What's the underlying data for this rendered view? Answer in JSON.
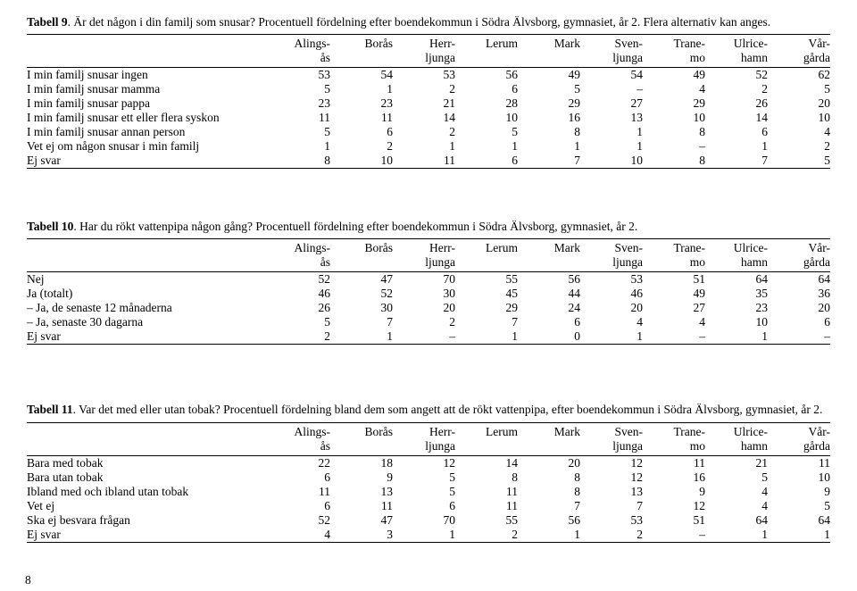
{
  "pageNumber": "8",
  "columns": {
    "top": [
      "Alings-",
      "Borås",
      "Herr-",
      "Lerum",
      "Mark",
      "Sven-",
      "Trane-",
      "Ulrice-",
      "Vår-"
    ],
    "bottom": [
      "ås",
      "",
      "ljunga",
      "",
      "",
      "ljunga",
      "mo",
      "hamn",
      "gårda"
    ]
  },
  "tables": [
    {
      "captionBold": "Tabell 9",
      "captionRest": ". Är det någon i din familj som snusar? Procentuell fördelning efter boendekommun i Södra Älvsborg, gymnasiet, år 2. Flera alternativ kan anges.",
      "rows": [
        {
          "label": "I min familj snusar ingen",
          "v": [
            "53",
            "54",
            "53",
            "56",
            "49",
            "54",
            "49",
            "52",
            "62"
          ]
        },
        {
          "label": "I min familj snusar mamma",
          "v": [
            "5",
            "1",
            "2",
            "6",
            "5",
            "–",
            "4",
            "2",
            "5"
          ]
        },
        {
          "label": "I min familj snusar pappa",
          "v": [
            "23",
            "23",
            "21",
            "28",
            "29",
            "27",
            "29",
            "26",
            "20"
          ]
        },
        {
          "label": "I min familj snusar ett eller flera syskon",
          "v": [
            "11",
            "11",
            "14",
            "10",
            "16",
            "13",
            "10",
            "14",
            "10"
          ]
        },
        {
          "label": "I min familj snusar annan person",
          "v": [
            "5",
            "6",
            "2",
            "5",
            "8",
            "1",
            "8",
            "6",
            "4"
          ]
        },
        {
          "label": "Vet ej om någon snusar i min familj",
          "v": [
            "1",
            "2",
            "1",
            "1",
            "1",
            "1",
            "–",
            "1",
            "2"
          ]
        },
        {
          "label": "Ej svar",
          "v": [
            "8",
            "10",
            "11",
            "6",
            "7",
            "10",
            "8",
            "7",
            "5"
          ]
        }
      ]
    },
    {
      "captionBold": "Tabell 10",
      "captionRest": ". Har du rökt vattenpipa någon gång? Procentuell fördelning efter boendekommun i Södra Älvsborg, gymnasiet, år 2.",
      "rows": [
        {
          "label": "Nej",
          "v": [
            "52",
            "47",
            "70",
            "55",
            "56",
            "53",
            "51",
            "64",
            "64"
          ]
        },
        {
          "label": "Ja (totalt)",
          "v": [
            "46",
            "52",
            "30",
            "45",
            "44",
            "46",
            "49",
            "35",
            "36"
          ]
        },
        {
          "label": "– Ja, de senaste 12 månaderna",
          "v": [
            "26",
            "30",
            "20",
            "29",
            "24",
            "20",
            "27",
            "23",
            "20"
          ]
        },
        {
          "label": "– Ja, senaste 30 dagarna",
          "v": [
            "5",
            "7",
            "2",
            "7",
            "6",
            "4",
            "4",
            "10",
            "6"
          ]
        },
        {
          "label": "Ej svar",
          "v": [
            "2",
            "1",
            "–",
            "1",
            "0",
            "1",
            "–",
            "1",
            "–"
          ]
        }
      ]
    },
    {
      "captionBold": "Tabell 11",
      "captionRest": ". Var det med eller utan tobak? Procentuell fördelning bland dem som angett att de rökt vattenpipa, efter boendekommun i Södra Älvsborg, gymnasiet, år 2.",
      "rows": [
        {
          "label": "Bara med tobak",
          "v": [
            "22",
            "18",
            "12",
            "14",
            "20",
            "12",
            "11",
            "21",
            "11"
          ]
        },
        {
          "label": "Bara utan tobak",
          "v": [
            "6",
            "9",
            "5",
            "8",
            "8",
            "12",
            "16",
            "5",
            "10"
          ]
        },
        {
          "label": "Ibland med och ibland utan tobak",
          "v": [
            "11",
            "13",
            "5",
            "11",
            "8",
            "13",
            "9",
            "4",
            "9"
          ]
        },
        {
          "label": "Vet ej",
          "v": [
            "6",
            "11",
            "6",
            "11",
            "7",
            "7",
            "12",
            "4",
            "5"
          ]
        },
        {
          "label": "Ska ej besvara frågan",
          "v": [
            "52",
            "47",
            "70",
            "55",
            "56",
            "53",
            "51",
            "64",
            "64"
          ]
        },
        {
          "label": "Ej svar",
          "v": [
            "4",
            "3",
            "1",
            "2",
            "1",
            "2",
            "–",
            "1",
            "1"
          ]
        }
      ]
    }
  ]
}
